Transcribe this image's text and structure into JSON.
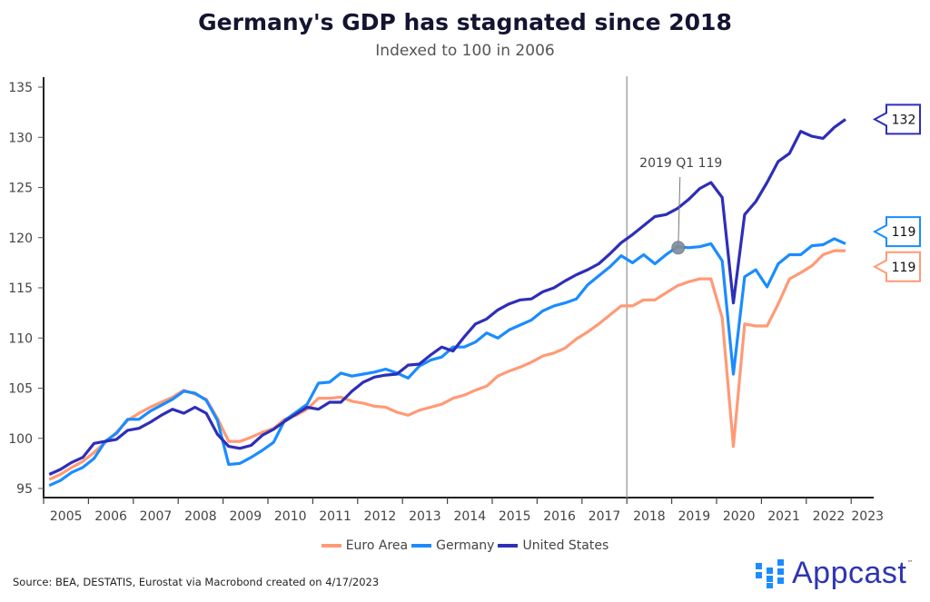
{
  "chart_data": {
    "type": "line",
    "title": "Germany's GDP has stagnated since 2018",
    "subtitle": "Indexed to 100 in 2006",
    "xlabel": "",
    "ylabel": "",
    "x_ticks": [
      "2005",
      "2006",
      "2007",
      "2008",
      "2009",
      "2010",
      "2011",
      "2012",
      "2013",
      "2014",
      "2015",
      "2016",
      "2017",
      "2018",
      "2019",
      "2020",
      "2021",
      "2022",
      "2023"
    ],
    "y_ticks": [
      95,
      100,
      105,
      110,
      115,
      120,
      125,
      130,
      135
    ],
    "ylim": [
      95,
      135
    ],
    "xlim": [
      "2005 Q1",
      "2023 Q4"
    ],
    "frequency": "quarterly",
    "start": "2005 Q1",
    "grid": false,
    "legend_position": "bottom",
    "reference_line": {
      "x": "2018 Q1"
    },
    "annotation": {
      "text": "2019 Q1 119",
      "series": "Germany",
      "x": "2019 Q1",
      "y": 119
    },
    "series": [
      {
        "name": "Euro Area",
        "color": "#ff9a76",
        "end_label": "119",
        "values": [
          95.9,
          96.4,
          97.1,
          97.7,
          98.6,
          99.6,
          100.6,
          101.8,
          102.5,
          103.1,
          103.6,
          104.1,
          104.8,
          104.4,
          103.9,
          102.0,
          99.7,
          99.7,
          100.1,
          100.6,
          101.0,
          101.9,
          102.3,
          102.9,
          104.0,
          104.0,
          104.1,
          103.7,
          103.5,
          103.2,
          103.1,
          102.6,
          102.3,
          102.8,
          103.1,
          103.4,
          104.0,
          104.3,
          104.8,
          105.2,
          106.2,
          106.7,
          107.1,
          107.6,
          108.2,
          108.5,
          109.0,
          109.9,
          110.6,
          111.4,
          112.3,
          113.2,
          113.2,
          113.8,
          113.8,
          114.5,
          115.2,
          115.6,
          115.9,
          115.9,
          112.0,
          99.2,
          111.4,
          111.2,
          111.2,
          113.4,
          115.9,
          116.5,
          117.2,
          118.3,
          118.7,
          118.7
        ]
      },
      {
        "name": "Germany",
        "color": "#1a8cff",
        "end_label": "119",
        "values": [
          95.3,
          95.8,
          96.6,
          97.1,
          98.0,
          99.7,
          100.5,
          101.9,
          101.9,
          102.7,
          103.3,
          103.9,
          104.7,
          104.5,
          103.8,
          101.8,
          97.4,
          97.5,
          98.1,
          98.8,
          99.6,
          101.8,
          102.6,
          103.4,
          105.5,
          105.6,
          106.5,
          106.2,
          106.4,
          106.6,
          106.9,
          106.5,
          106.0,
          107.2,
          107.8,
          108.1,
          109.1,
          109.1,
          109.6,
          110.5,
          110.0,
          110.8,
          111.3,
          111.8,
          112.7,
          113.2,
          113.5,
          113.9,
          115.3,
          116.2,
          117.1,
          118.2,
          117.5,
          118.3,
          117.4,
          118.3,
          119.1,
          119.0,
          119.1,
          119.4,
          117.7,
          106.4,
          116.1,
          116.8,
          115.1,
          117.4,
          118.3,
          118.3,
          119.2,
          119.3,
          119.9,
          119.4
        ]
      },
      {
        "name": "United States",
        "color": "#2e2eb8",
        "end_label": "132",
        "values": [
          96.4,
          96.9,
          97.6,
          98.1,
          99.5,
          99.7,
          99.9,
          100.8,
          101.0,
          101.6,
          102.3,
          102.9,
          102.5,
          103.1,
          102.5,
          100.4,
          99.2,
          99.0,
          99.3,
          100.3,
          100.9,
          101.7,
          102.4,
          103.1,
          102.9,
          103.6,
          103.6,
          104.7,
          105.6,
          106.1,
          106.3,
          106.4,
          107.3,
          107.4,
          108.3,
          109.1,
          108.7,
          110.1,
          111.4,
          111.9,
          112.8,
          113.4,
          113.8,
          113.9,
          114.6,
          115.0,
          115.7,
          116.3,
          116.8,
          117.4,
          118.4,
          119.5,
          120.3,
          121.2,
          122.1,
          122.3,
          122.9,
          123.8,
          124.9,
          125.5,
          124.0,
          113.5,
          122.3,
          123.6,
          125.5,
          127.6,
          128.4,
          130.6,
          130.1,
          129.9,
          131.0,
          131.8
        ]
      }
    ]
  },
  "footer": {
    "source": "Source: BEA, DESTATIS, Eurostat via Macrobond created on 4/17/2023",
    "logo_text": "Appcast",
    "logo_tm": "™"
  }
}
